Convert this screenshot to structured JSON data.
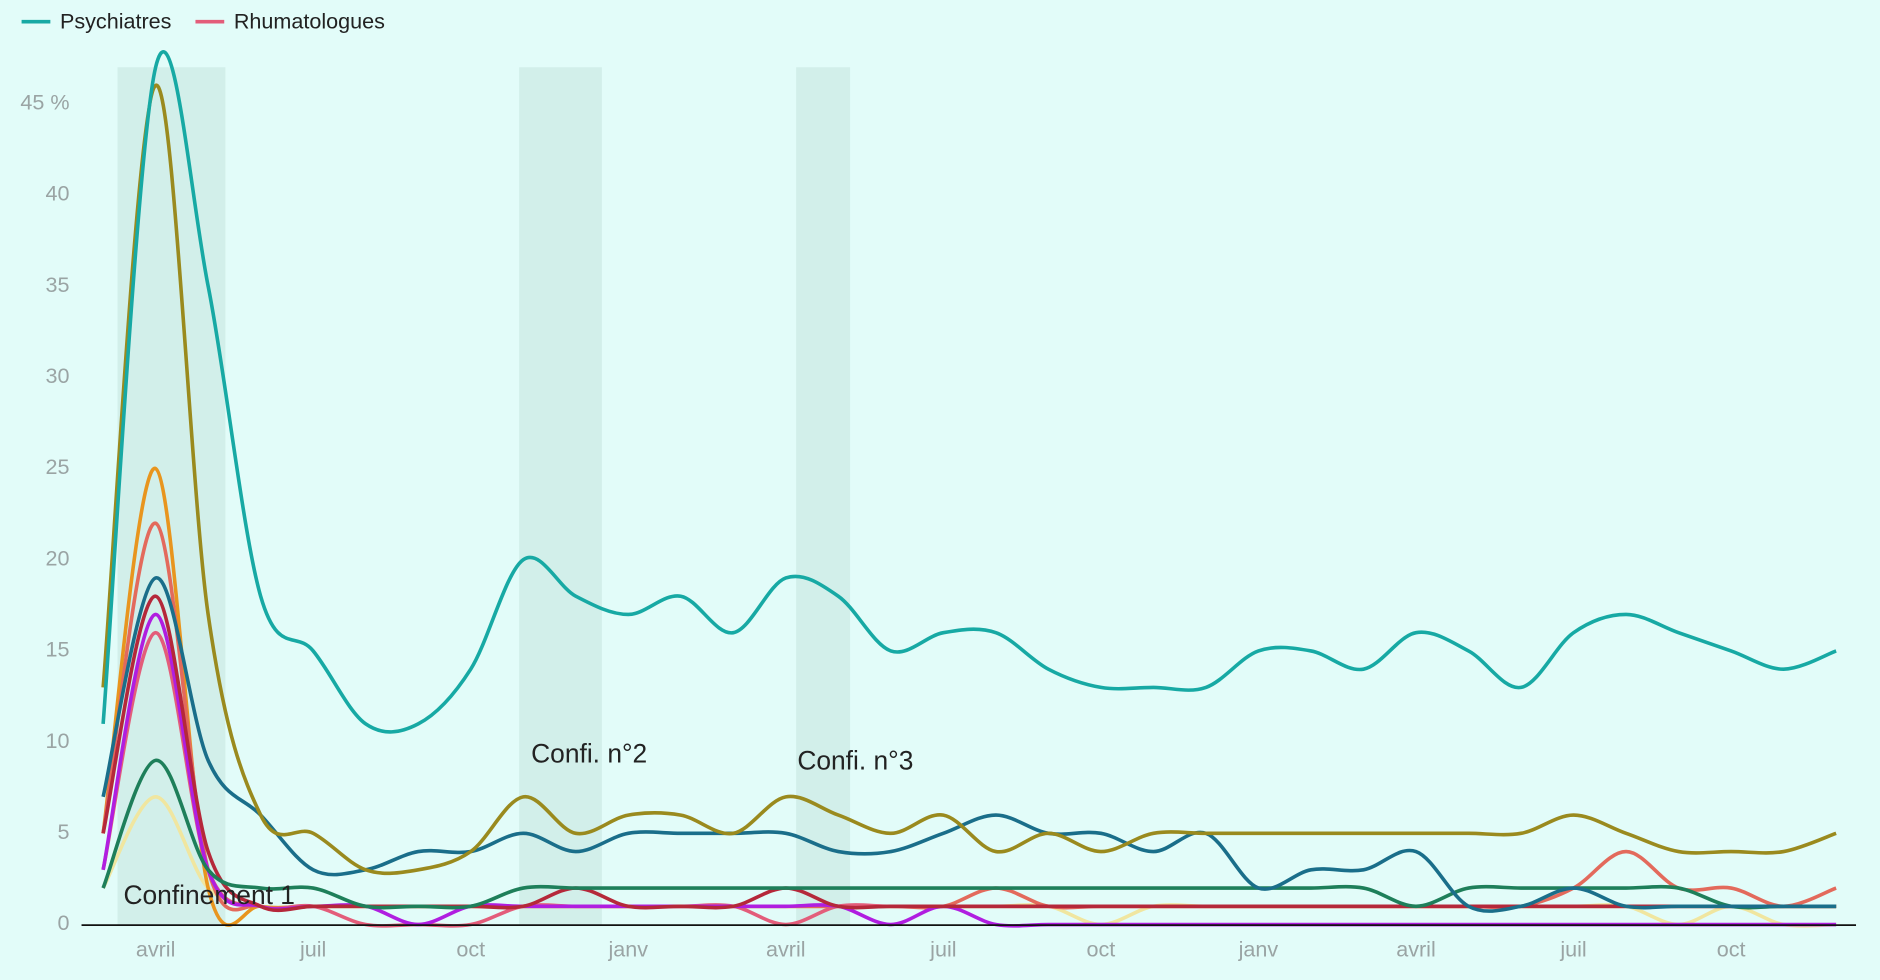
{
  "chart_data": {
    "type": "line",
    "categories": [
      null,
      "avril",
      null,
      null,
      "juil",
      null,
      null,
      "oct",
      null,
      null,
      "janv",
      null,
      null,
      "avril",
      null,
      null,
      "juil",
      null,
      null,
      "oct",
      null,
      null,
      "janv",
      null,
      null,
      "avril",
      null,
      null,
      "juil",
      null,
      null,
      "oct",
      null,
      null
    ],
    "ylim": [
      0,
      47
    ],
    "yticks": [
      0,
      5,
      10,
      15,
      20,
      25,
      30,
      35,
      40,
      {
        "value": 45,
        "label": "45 %"
      }
    ],
    "annotations": [
      "Confinement 1",
      "Confi. n°2",
      "Confi. n°3"
    ],
    "series": [
      {
        "color": "#f0e6a0",
        "values": [
          2,
          7,
          2,
          1,
          1,
          1,
          1,
          1,
          1,
          1,
          1,
          1,
          1,
          1,
          1,
          1,
          1,
          1,
          1,
          0,
          1,
          1,
          1,
          1,
          1,
          1,
          1,
          1,
          1,
          1,
          0,
          1,
          0,
          0
        ]
      },
      {
        "color": "#e8951e",
        "values": [
          5,
          25,
          2,
          1,
          1,
          1,
          1,
          1,
          1,
          1,
          1,
          1,
          1,
          1,
          1,
          1,
          1,
          1,
          1,
          1,
          1,
          1,
          1,
          1,
          1,
          1,
          1,
          1,
          1,
          1,
          1,
          1,
          1,
          1
        ]
      },
      {
        "color": "#e36a5c",
        "values": [
          5,
          22,
          3,
          1,
          1,
          1,
          1,
          1,
          1,
          1,
          1,
          1,
          1,
          1,
          1,
          1,
          1,
          2,
          1,
          1,
          1,
          1,
          1,
          1,
          1,
          1,
          1,
          1,
          2,
          4,
          2,
          2,
          1,
          2
        ]
      },
      {
        "name": "Rhumatologues",
        "color": "#e35d7a",
        "values": [
          3,
          16,
          3,
          1,
          1,
          0,
          0,
          0,
          1,
          1,
          1,
          1,
          1,
          0,
          1,
          1,
          1,
          1,
          1,
          1,
          1,
          1,
          1,
          1,
          1,
          1,
          1,
          1,
          1,
          1,
          1,
          1,
          1,
          1
        ]
      },
      {
        "color": "#b01ee0",
        "values": [
          3,
          17,
          3,
          1,
          1,
          1,
          0,
          1,
          1,
          1,
          1,
          1,
          1,
          1,
          1,
          0,
          1,
          0,
          0,
          0,
          0,
          0,
          0,
          0,
          0,
          0,
          0,
          0,
          0,
          0,
          0,
          0,
          0,
          0
        ]
      },
      {
        "color": "#b5283a",
        "values": [
          5,
          18,
          4,
          1,
          1,
          1,
          1,
          1,
          1,
          2,
          1,
          1,
          1,
          2,
          1,
          1,
          1,
          1,
          1,
          1,
          1,
          1,
          1,
          1,
          1,
          1,
          1,
          1,
          1,
          1,
          1,
          1,
          1,
          1
        ]
      },
      {
        "color": "#1e7f5a",
        "values": [
          2,
          9,
          3,
          2,
          2,
          1,
          1,
          1,
          2,
          2,
          2,
          2,
          2,
          2,
          2,
          2,
          2,
          2,
          2,
          2,
          2,
          2,
          2,
          2,
          2,
          1,
          2,
          2,
          2,
          2,
          2,
          1,
          1,
          1
        ]
      },
      {
        "color": "#1a6e8a",
        "values": [
          7,
          19,
          9,
          6,
          3,
          3,
          4,
          4,
          5,
          4,
          5,
          5,
          5,
          5,
          4,
          4,
          5,
          6,
          5,
          5,
          4,
          5,
          2,
          3,
          3,
          4,
          1,
          1,
          2,
          1,
          1,
          1,
          1,
          1
        ]
      },
      {
        "color": "#9a8a1e",
        "values": [
          13,
          46,
          17,
          6,
          5,
          3,
          3,
          4,
          7,
          5,
          6,
          6,
          5,
          7,
          6,
          5,
          6,
          4,
          5,
          4,
          5,
          5,
          5,
          5,
          5,
          5,
          5,
          5,
          6,
          5,
          4,
          4,
          4,
          5
        ]
      },
      {
        "name": "Psychiatres",
        "color": "#17a9a4",
        "values": [
          11,
          47,
          35,
          18,
          15,
          11,
          11,
          14,
          20,
          18,
          17,
          18,
          16,
          19,
          18,
          15,
          16,
          16,
          14,
          13,
          13,
          13,
          15,
          15,
          14,
          16,
          15,
          13,
          16,
          17,
          16,
          15,
          14,
          15
        ]
      }
    ]
  }
}
